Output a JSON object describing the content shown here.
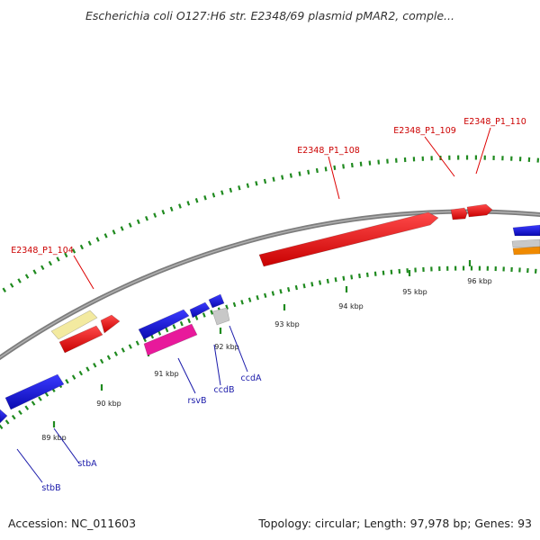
{
  "header": {
    "title": "Escherichia coli O127:H6 str. E2348/69 plasmid pMAR2, comple..."
  },
  "footer": {
    "accession": "Accession: NC_011603",
    "topology": "Topology: circular; Length: 97,978 bp; Genes: 93"
  },
  "colors": {
    "backbone": "#8a8a8a",
    "tick": "#1f8a1f",
    "gene_red": "#e60000",
    "gene_blue": "#1010dd",
    "gene_yellow": "#f3eaa0",
    "gene_magenta": "#e8199b",
    "gene_grey": "#c8c8c8",
    "gene_orange": "#f08a00",
    "label_red": "#cc0000",
    "label_blue": "#1a1aaa"
  },
  "scale_labels": [
    "89 kbp",
    "90 kbp",
    "91 kbp",
    "92 kbp",
    "93 kbp",
    "94 kbp",
    "95 kbp",
    "96 kbp"
  ],
  "gene_labels": [
    {
      "text": "E2348_P1_104",
      "color": "red"
    },
    {
      "text": "E2348_P1_108",
      "color": "red"
    },
    {
      "text": "E2348_P1_109",
      "color": "red"
    },
    {
      "text": "E2348_P1_110",
      "color": "red"
    },
    {
      "text": "rsvB",
      "color": "blue"
    },
    {
      "text": "ccdB",
      "color": "blue"
    },
    {
      "text": "ccdA",
      "color": "blue"
    },
    {
      "text": "stbA",
      "color": "blue"
    },
    {
      "text": "stbB",
      "color": "blue"
    }
  ]
}
